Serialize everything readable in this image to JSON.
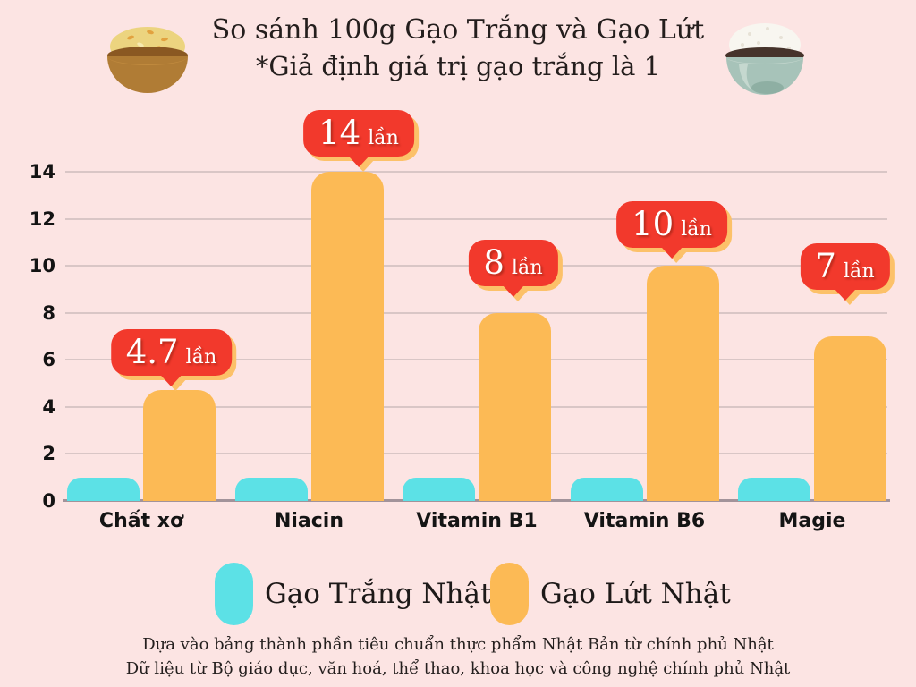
{
  "title": {
    "line1": "So sánh 100g Gạo Trắng và Gạo Lứt",
    "line2": "*Giả định giá trị gạo trắng là 1"
  },
  "icons": {
    "left": "brown-rice-bowl-icon",
    "right": "white-rice-bowl-icon"
  },
  "chart_data": {
    "type": "bar",
    "categories": [
      "Chất xơ",
      "Niacin",
      "Vitamin B1",
      "Vitamin B6",
      "Magie"
    ],
    "series": [
      {
        "name": "Gạo Trắng Nhật",
        "color": "#5ce1e6",
        "values": [
          1,
          1,
          1,
          1,
          1
        ]
      },
      {
        "name": "Gạo Lứt Nhật",
        "color": "#fcba55",
        "values": [
          4.7,
          14,
          8,
          10,
          7
        ]
      }
    ],
    "annotations": [
      {
        "value": "4.7",
        "unit": "lần"
      },
      {
        "value": "14",
        "unit": "lần"
      },
      {
        "value": "8",
        "unit": "lần"
      },
      {
        "value": "10",
        "unit": "lần"
      },
      {
        "value": "7",
        "unit": "lần"
      }
    ],
    "yticks": [
      0,
      2,
      4,
      6,
      8,
      10,
      12,
      14
    ],
    "ylim": [
      0,
      14
    ],
    "grid": true,
    "legend_position": "bottom"
  },
  "legend": {
    "items": [
      {
        "label": "Gạo Trắng Nhật",
        "color": "#5ce1e6"
      },
      {
        "label": "Gạo Lứt Nhật",
        "color": "#fcba55"
      }
    ]
  },
  "footer": {
    "line1": "Dựa vào bảng thành phần tiêu chuẩn thực phẩm Nhật Bản từ chính phủ Nhật",
    "line2": "Dữ liệu từ Bộ giáo dục, văn hoá, thể thao, khoa học và công nghệ chính phủ Nhật"
  },
  "colors": {
    "background": "#fce4e3",
    "white_rice_bar": "#5ce1e6",
    "brown_rice_bar": "#fcba55",
    "badge_red": "#f2392c",
    "badge_shadow": "#fcc169",
    "gridline": "#d9c6c6",
    "axis_line": "#a2939a",
    "text_dark": "#241e1d"
  }
}
